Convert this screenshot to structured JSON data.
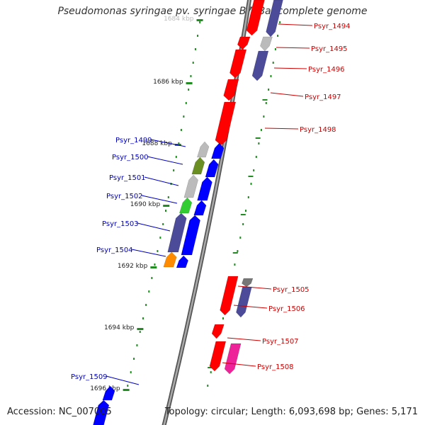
{
  "title": "Pseudomonas syringae pv. syringae B728a, complete genome",
  "footer": {
    "accession": "Accession: NC_007005",
    "topology": "Topology: circular; Length: 6,093,698 bp; Genes: 5,171"
  },
  "colors": {
    "backbone": "#888888",
    "tick": "#228b22",
    "forward_label": "#cc0000",
    "reverse_label": "#0000bb",
    "red": "#ff0000",
    "blue": "#0000ff",
    "navy": "#4b4b9a",
    "gray": "#bbbbbb",
    "darkgray": "#777777",
    "olive": "#6b8e23",
    "green": "#33cc33",
    "orange": "#ff8c00",
    "magenta": "#ee2299"
  },
  "scale_labels": [
    "1684 kbp",
    "1686 kbp",
    "1688 kbp",
    "1690 kbp",
    "1692 kbp",
    "1694 kbp",
    "1696 kbp"
  ],
  "gene_labels": {
    "forward": [
      "Psyr_1494",
      "Psyr_1495",
      "Psyr_1496",
      "Psyr_1497",
      "Psyr_1498",
      "Psyr_1505",
      "Psyr_1506",
      "Psyr_1507",
      "Psyr_1508"
    ],
    "reverse": [
      "Psyr_1499",
      "Psyr_1500",
      "Psyr_1501",
      "Psyr_1502",
      "Psyr_1503",
      "Psyr_1504",
      "Psyr_1509"
    ]
  }
}
